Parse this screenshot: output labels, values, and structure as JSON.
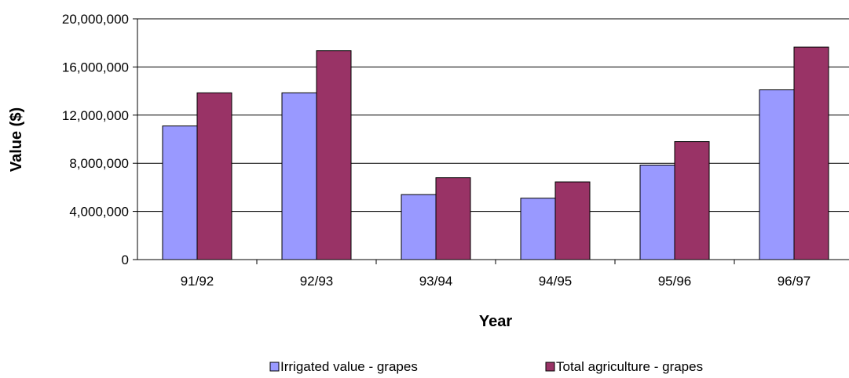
{
  "chart_data": {
    "type": "bar",
    "title": "",
    "xlabel": "Year",
    "ylabel": "Value ($)",
    "categories": [
      "91/92",
      "92/93",
      "93/94",
      "94/95",
      "95/96",
      "96/97"
    ],
    "series": [
      {
        "name": "Irrigated value - grapes",
        "color": "#9999ff",
        "values": [
          11100000,
          13850000,
          5400000,
          5100000,
          7850000,
          14100000
        ]
      },
      {
        "name": "Total agriculture - grapes",
        "color": "#993366",
        "values": [
          13850000,
          17350000,
          6800000,
          6450000,
          9800000,
          17650000
        ]
      }
    ],
    "ylim": [
      0,
      20000000
    ],
    "yticks": [
      0,
      4000000,
      8000000,
      12000000,
      16000000,
      20000000
    ],
    "ytick_labels": [
      "0",
      "4,000,000",
      "8,000,000",
      "12,000,000",
      "16,000,000",
      "20,000,000"
    ],
    "grid": true,
    "legend_position": "bottom"
  }
}
